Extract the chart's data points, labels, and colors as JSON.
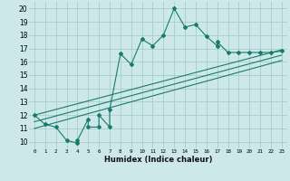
{
  "title": "",
  "xlabel": "Humidex (Indice chaleur)",
  "background_color": "#cce8e8",
  "grid_color": "#aacccc",
  "line_color": "#1a7a6e",
  "xlim": [
    -0.5,
    23.5
  ],
  "ylim": [
    9.5,
    20.5
  ],
  "xticks": [
    0,
    1,
    2,
    3,
    4,
    5,
    6,
    7,
    8,
    9,
    10,
    11,
    12,
    13,
    14,
    15,
    16,
    17,
    18,
    19,
    20,
    21,
    22,
    23
  ],
  "yticks": [
    10,
    11,
    12,
    13,
    14,
    15,
    16,
    17,
    18,
    19,
    20
  ],
  "series1_x": [
    0,
    1,
    2,
    3,
    4,
    4,
    5,
    5,
    6,
    6,
    7,
    7,
    8,
    9,
    10,
    11,
    12,
    13,
    14,
    15,
    16,
    17,
    17,
    18,
    19,
    20,
    21,
    22,
    23
  ],
  "series1_y": [
    12,
    11.3,
    11.1,
    10.1,
    9.9,
    10.1,
    11.7,
    11.1,
    11.1,
    12,
    11.1,
    12.4,
    16.6,
    15.8,
    17.7,
    17.2,
    18.0,
    20.0,
    18.6,
    18.8,
    17.9,
    17.2,
    17.5,
    16.7,
    16.7,
    16.7,
    16.7,
    16.7,
    16.8
  ],
  "series2_x": [
    0,
    23
  ],
  "series2_y": [
    12.0,
    16.9
  ],
  "series3_x": [
    0,
    23
  ],
  "series3_y": [
    11.5,
    16.5
  ],
  "series4_x": [
    0,
    23
  ],
  "series4_y": [
    11.0,
    16.1
  ]
}
